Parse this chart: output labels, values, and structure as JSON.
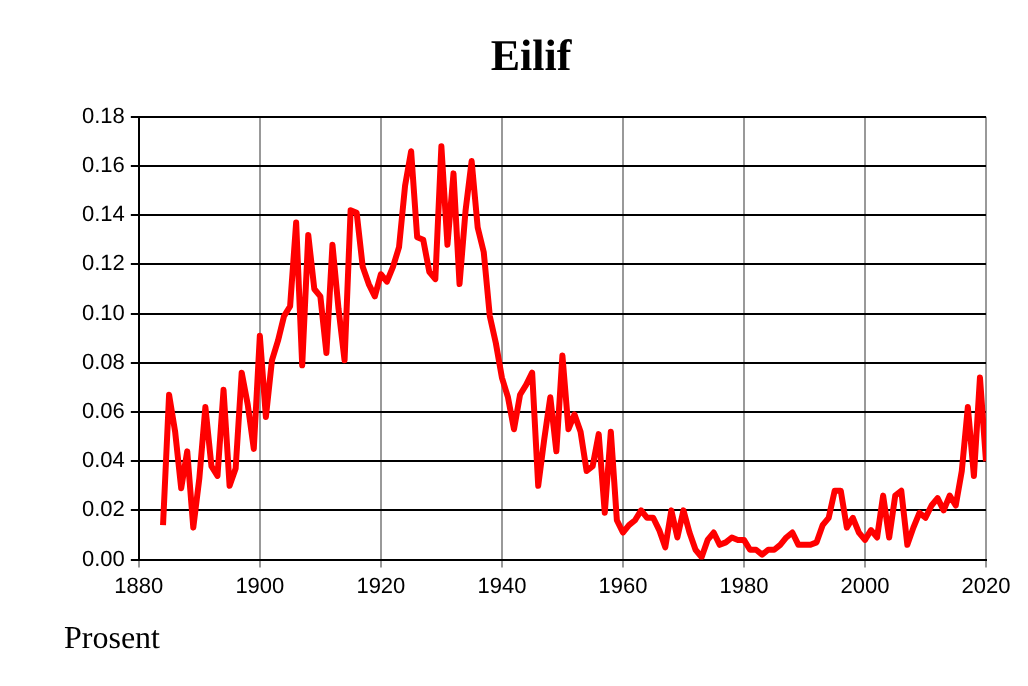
{
  "chart_data": {
    "type": "line",
    "title": "Eilif",
    "annotations": [
      "Prosent"
    ],
    "x": [
      1884,
      1885,
      1886,
      1887,
      1888,
      1889,
      1890,
      1891,
      1892,
      1893,
      1894,
      1895,
      1896,
      1897,
      1898,
      1899,
      1900,
      1901,
      1902,
      1903,
      1904,
      1905,
      1906,
      1907,
      1908,
      1909,
      1910,
      1911,
      1912,
      1913,
      1914,
      1915,
      1916,
      1917,
      1918,
      1919,
      1920,
      1921,
      1922,
      1923,
      1924,
      1925,
      1926,
      1927,
      1928,
      1929,
      1930,
      1931,
      1932,
      1933,
      1934,
      1935,
      1936,
      1937,
      1938,
      1939,
      1940,
      1941,
      1942,
      1943,
      1944,
      1945,
      1946,
      1947,
      1948,
      1949,
      1950,
      1951,
      1952,
      1953,
      1954,
      1955,
      1956,
      1957,
      1958,
      1959,
      1960,
      1961,
      1962,
      1963,
      1964,
      1965,
      1966,
      1967,
      1968,
      1969,
      1970,
      1971,
      1972,
      1973,
      1974,
      1975,
      1976,
      1977,
      1978,
      1979,
      1980,
      1981,
      1982,
      1983,
      1984,
      1985,
      1986,
      1987,
      1988,
      1989,
      1990,
      1991,
      1992,
      1993,
      1994,
      1995,
      1996,
      1997,
      1998,
      1999,
      2000,
      2001,
      2002,
      2003,
      2004,
      2005,
      2006,
      2007,
      2008,
      2009,
      2010,
      2011,
      2012,
      2013,
      2014,
      2015,
      2016,
      2017,
      2018,
      2019,
      2020
    ],
    "series": [
      {
        "color": "#ff0000",
        "values": [
          0.014,
          0.067,
          0.052,
          0.029,
          0.044,
          0.013,
          0.033,
          0.062,
          0.038,
          0.034,
          0.069,
          0.03,
          0.037,
          0.076,
          0.063,
          0.045,
          0.091,
          0.058,
          0.081,
          0.089,
          0.099,
          0.103,
          0.137,
          0.079,
          0.132,
          0.11,
          0.107,
          0.084,
          0.128,
          0.102,
          0.081,
          0.142,
          0.141,
          0.119,
          0.112,
          0.107,
          0.116,
          0.113,
          0.119,
          0.127,
          0.152,
          0.166,
          0.131,
          0.13,
          0.117,
          0.114,
          0.168,
          0.128,
          0.157,
          0.112,
          0.142,
          0.162,
          0.135,
          0.125,
          0.099,
          0.088,
          0.074,
          0.066,
          0.053,
          0.067,
          0.071,
          0.076,
          0.03,
          0.049,
          0.066,
          0.044,
          0.083,
          0.053,
          0.059,
          0.052,
          0.036,
          0.038,
          0.051,
          0.019,
          0.052,
          0.016,
          0.011,
          0.014,
          0.016,
          0.02,
          0.017,
          0.017,
          0.012,
          0.005,
          0.02,
          0.009,
          0.02,
          0.011,
          0.004,
          0.001,
          0.008,
          0.011,
          0.006,
          0.007,
          0.009,
          0.008,
          0.008,
          0.004,
          0.004,
          0.002,
          0.004,
          0.004,
          0.006,
          0.009,
          0.011,
          0.006,
          0.006,
          0.006,
          0.007,
          0.014,
          0.017,
          0.028,
          0.028,
          0.013,
          0.017,
          0.011,
          0.008,
          0.012,
          0.009,
          0.026,
          0.009,
          0.026,
          0.028,
          0.006,
          0.013,
          0.019,
          0.017,
          0.022,
          0.025,
          0.02,
          0.026,
          0.022,
          0.036,
          0.062,
          0.034,
          0.074,
          0.04
        ]
      }
    ],
    "xlim": [
      1880,
      2020
    ],
    "xticks": [
      1880,
      1900,
      1920,
      1940,
      1960,
      1980,
      2000,
      2020
    ],
    "ylim": [
      0,
      0.18
    ],
    "yticks": [
      {
        "value": 0,
        "label": "0.00"
      },
      {
        "value": 0.02,
        "label": "0.02"
      },
      {
        "value": 0.04,
        "label": "0.04"
      },
      {
        "value": 0.06,
        "label": "0.06"
      },
      {
        "value": 0.08,
        "label": "0.08"
      },
      {
        "value": 0.1,
        "label": "0.10"
      },
      {
        "value": 0.12,
        "label": "0.12"
      },
      {
        "value": 0.14,
        "label": "0.14"
      },
      {
        "value": 0.16,
        "label": "0.16"
      },
      {
        "value": 0.18,
        "label": "0.18"
      }
    ],
    "grid": true,
    "legend": false,
    "marker": "none",
    "line_style": "solid"
  }
}
